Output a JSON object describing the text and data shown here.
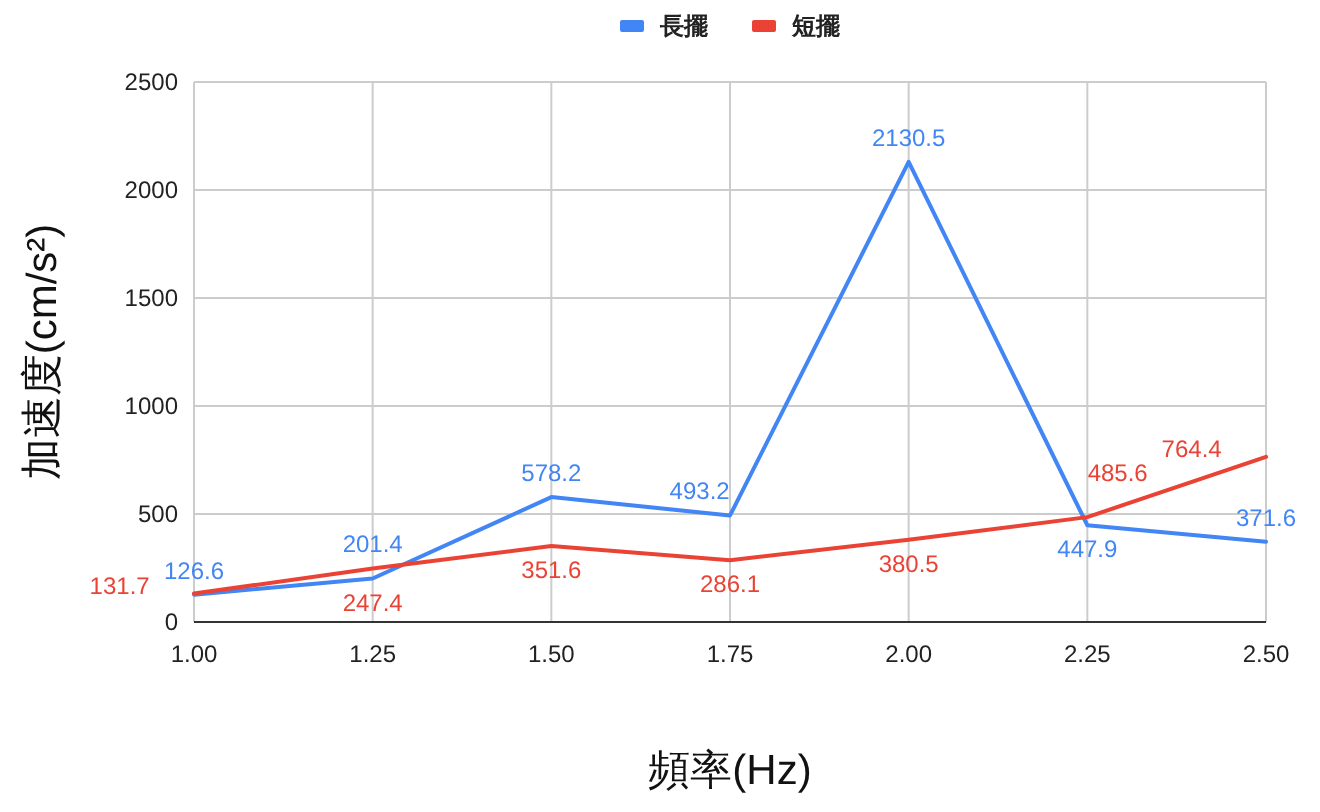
{
  "chart_data": {
    "type": "line",
    "xlabel": "頻率(Hz)",
    "ylabel": "加速度(cm/s²)",
    "x": [
      1,
      1.25,
      1.5,
      1.75,
      2,
      2.25,
      2.5
    ],
    "series": [
      {
        "name": "長擺",
        "color": "#4285f4",
        "values": [
          126.6,
          201.4,
          578.2,
          493.2,
          2130.5,
          447.9,
          371.6
        ]
      },
      {
        "name": "短擺",
        "color": "#ea4335",
        "values": [
          131.7,
          247.4,
          351.6,
          286.1,
          380.5,
          485.6,
          764.4
        ]
      }
    ],
    "xlim": [
      1,
      2.5
    ],
    "ylim": [
      0,
      2500
    ],
    "xticks": [
      {
        "value": 1,
        "label": "1.00"
      },
      {
        "value": 1.25,
        "label": "1.25"
      },
      {
        "value": 1.5,
        "label": "1.50"
      },
      {
        "value": 1.75,
        "label": "1.75"
      },
      {
        "value": 2,
        "label": "2.00"
      },
      {
        "value": 2.25,
        "label": "2.25"
      },
      {
        "value": 2.5,
        "label": "2.50"
      }
    ],
    "yticks": [
      0,
      500,
      1000,
      1500,
      2000,
      2500
    ],
    "grid": true,
    "legend": "top",
    "data_labels": true
  }
}
